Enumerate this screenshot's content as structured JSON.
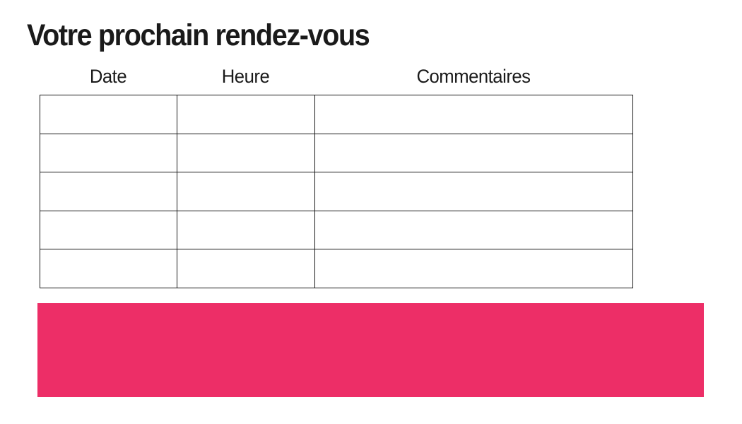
{
  "page": {
    "title": "Votre prochain rendez-vous"
  },
  "table": {
    "border_color": "#1a1a1a",
    "columns": [
      {
        "label": "Date"
      },
      {
        "label": "Heure"
      },
      {
        "label": "Commentaires"
      }
    ],
    "rows": [
      {
        "date": "",
        "heure": "",
        "commentaires": ""
      },
      {
        "date": "",
        "heure": "",
        "commentaires": ""
      },
      {
        "date": "",
        "heure": "",
        "commentaires": ""
      },
      {
        "date": "",
        "heure": "",
        "commentaires": ""
      },
      {
        "date": "",
        "heure": "",
        "commentaires": ""
      }
    ]
  },
  "banner": {
    "color": "#ED2E67",
    "label": ""
  }
}
